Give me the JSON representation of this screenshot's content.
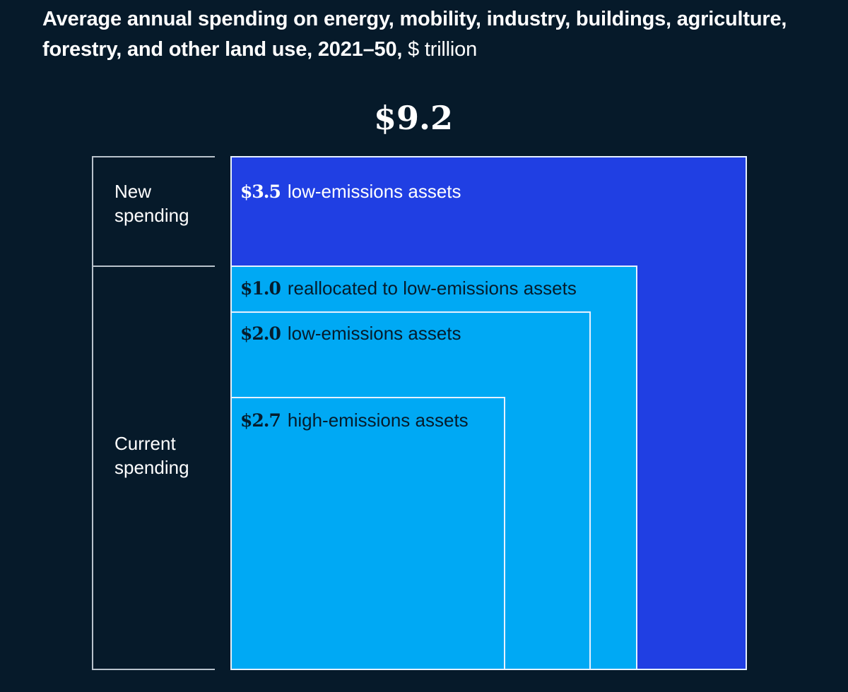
{
  "title": {
    "main": "Average annual spending on energy, mobility, industry,  buildings, agriculture, forestry, and other land use,  2021–50, ",
    "unit": "$ trillion"
  },
  "colors": {
    "background": "#061a2a",
    "new_spending": "#203fe3",
    "current_spending": "#00a9f4",
    "text_light": "#ffffff",
    "text_dark": "#051c2c"
  },
  "chart_data": {
    "type": "nested-area",
    "title": "Average annual spending on energy, mobility, industry, buildings, agriculture, forestry, and other land use, 2021–50, $ trillion",
    "total_label": "$9.2",
    "total": 9.2,
    "unit": "$ trillion",
    "groups": [
      {
        "name": "New spending",
        "value": 3.5
      },
      {
        "name": "Current spending",
        "value": 5.7
      }
    ],
    "segments": [
      {
        "group": "New spending",
        "value": 3.5,
        "value_label": "$3.5",
        "label": "low-emissions assets",
        "cumulative": 9.2
      },
      {
        "group": "Current spending",
        "value": 1.0,
        "value_label": "$1.0",
        "label": "reallocated to low-emissions assets",
        "cumulative": 5.7
      },
      {
        "group": "Current spending",
        "value": 2.0,
        "value_label": "$2.0",
        "label": "low-emissions assets",
        "cumulative": 4.7
      },
      {
        "group": "Current spending",
        "value": 2.7,
        "value_label": "$2.7",
        "label": "high-emissions assets",
        "cumulative": 2.7
      }
    ]
  }
}
